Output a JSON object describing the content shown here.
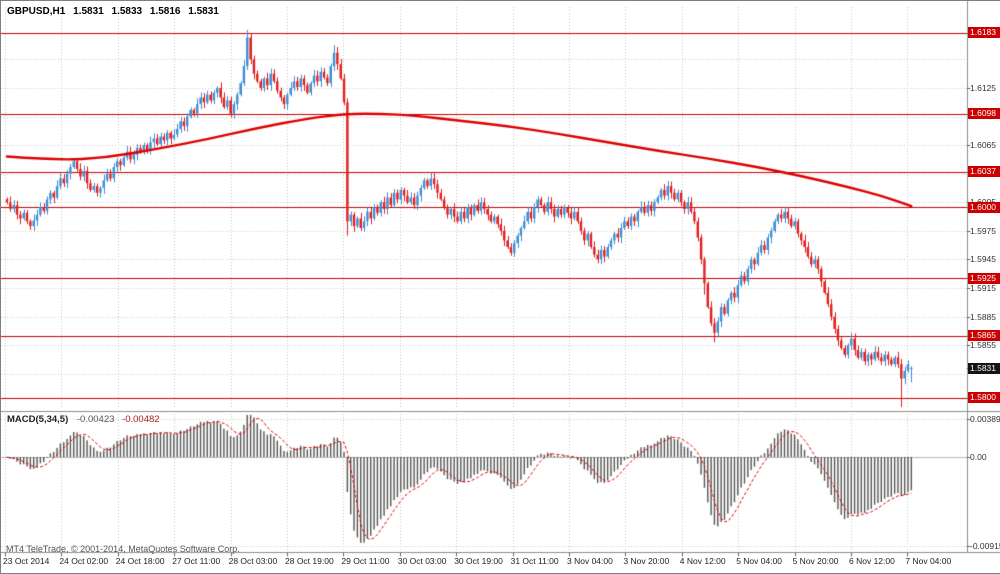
{
  "header": {
    "symbol": "GBPUSD,H1",
    "open": "1.5831",
    "high": "1.5833",
    "low": "1.5816",
    "close": "1.5831"
  },
  "macd_panel": {
    "name": "MACD(5,34,5)",
    "main_value": "-0.00423",
    "signal_value": "-0.00482"
  },
  "copyright": "MT4 TeleTrade, © 2001-2014, MetaQuotes Software Corp.",
  "price_axis": [
    {
      "label": "1.6183",
      "style": "red",
      "price": 1.6183
    },
    {
      "label": "1.6125",
      "style": "plain",
      "price": 1.6125
    },
    {
      "label": "1.6098",
      "style": "red",
      "price": 1.6098
    },
    {
      "label": "1.6065",
      "style": "plain",
      "price": 1.6065
    },
    {
      "label": "1.6037",
      "style": "red",
      "price": 1.6037
    },
    {
      "label": "1.6005",
      "style": "plain",
      "price": 1.6005
    },
    {
      "label": "1.6000",
      "style": "red",
      "price": 1.6
    },
    {
      "label": "1.5975",
      "style": "plain",
      "price": 1.5975
    },
    {
      "label": "1.5945",
      "style": "plain",
      "price": 1.5945
    },
    {
      "label": "1.5925",
      "style": "red",
      "price": 1.5925
    },
    {
      "label": "1.5915",
      "style": "plain",
      "price": 1.5915
    },
    {
      "label": "1.5885",
      "style": "plain",
      "price": 1.5885
    },
    {
      "label": "1.5865",
      "style": "red",
      "price": 1.5865
    },
    {
      "label": "1.5855",
      "style": "plain",
      "price": 1.5855
    },
    {
      "label": "1.5831",
      "style": "current",
      "price": 1.5831
    },
    {
      "label": "1.5800",
      "style": "red",
      "price": 1.58
    }
  ],
  "macd_axis": [
    {
      "label": "0.00389",
      "value": 0.00389
    },
    {
      "label": "0.00",
      "value": 0
    },
    {
      "label": "-0.00915",
      "value": -0.00915
    }
  ],
  "time_axis": [
    "23 Oct 2014",
    "24 Oct 02:00",
    "24 Oct 18:00",
    "27 Oct 11:00",
    "28 Oct 03:00",
    "28 Oct 19:00",
    "29 Oct 11:00",
    "30 Oct 03:00",
    "30 Oct 19:00",
    "31 Oct 11:00",
    "3 Nov 04:00",
    "3 Nov 20:00",
    "4 Nov 12:00",
    "5 Nov 04:00",
    "5 Nov 20:00",
    "6 Nov 12:00",
    "7 Nov 04:00"
  ],
  "colors": {
    "background": "#ffffff",
    "up_candle": "#3f8fd6",
    "down_candle": "#e02020",
    "level_line": "#cc0000",
    "ma_line": "#dd0000",
    "grid": "#c9c9c9",
    "histogram": "#555555",
    "signal_line": "#e00000",
    "zero_line": "#b8b8b8",
    "separator": "#8c8c8c",
    "axis_tick": "#666666"
  },
  "chart_data": {
    "type": "candlestick",
    "symbol": "GBPUSD",
    "timeframe": "H1",
    "title": "GBPUSD,H1",
    "current_ohlc": {
      "open": 1.5831,
      "high": 1.5833,
      "low": 1.5816,
      "close": 1.5831
    },
    "horizontal_levels": [
      1.6183,
      1.6098,
      1.6037,
      1.6,
      1.5925,
      1.5865,
      1.58
    ],
    "price_grid": [
      1.5825,
      1.5855,
      1.5885,
      1.5915,
      1.5945,
      1.5975,
      1.6005,
      1.6035,
      1.6065,
      1.6095,
      1.6125,
      1.6155
    ],
    "price_axis_range": {
      "top": 1.621,
      "bottom": 1.5788
    },
    "x_range": [
      "23 Oct 2014 00:00",
      "7 Nov 2014 06:00"
    ],
    "open_first": 1.6008,
    "closes": [
      1.6005,
      1.5998,
      1.6002,
      1.5992,
      1.5988,
      1.5994,
      1.5985,
      1.598,
      1.5986,
      1.5992,
      1.6,
      1.5996,
      1.6008,
      1.6015,
      1.601,
      1.6022,
      1.603,
      1.6025,
      1.6035,
      1.6042,
      1.6048,
      1.604,
      1.6032,
      1.6038,
      1.6025,
      1.6018,
      1.6022,
      1.6015,
      1.602,
      1.6028,
      1.6035,
      1.603,
      1.6042,
      1.6048,
      1.6044,
      1.6052,
      1.6058,
      1.605,
      1.6055,
      1.6062,
      1.6058,
      1.6065,
      1.606,
      1.6068,
      1.6072,
      1.6066,
      1.6074,
      1.607,
      1.6078,
      1.6072,
      1.6076,
      1.6082,
      1.609,
      1.6085,
      1.6095,
      1.6102,
      1.6098,
      1.6108,
      1.6115,
      1.611,
      1.6118,
      1.6112,
      1.612,
      1.6125,
      1.6115,
      1.6105,
      1.6112,
      1.6098,
      1.6108,
      1.6118,
      1.613,
      1.6148,
      1.6178,
      1.6155,
      1.614,
      1.6132,
      1.6125,
      1.6135,
      1.6128,
      1.614,
      1.6132,
      1.6122,
      1.6115,
      1.6108,
      1.6118,
      1.6125,
      1.6132,
      1.6126,
      1.6135,
      1.6128,
      1.612,
      1.613,
      1.6138,
      1.6132,
      1.6142,
      1.6136,
      1.613,
      1.6148,
      1.6162,
      1.615,
      1.6135,
      1.611,
      1.5985,
      1.5992,
      1.598,
      1.5988,
      1.5978,
      1.5985,
      1.5995,
      1.5988,
      1.6,
      1.5994,
      1.6005,
      1.5998,
      1.601,
      1.6002,
      1.6015,
      1.6008,
      1.6018,
      1.6012,
      1.6005,
      1.601,
      1.6002,
      1.6012,
      1.602,
      1.6028,
      1.6022,
      1.603,
      1.6024,
      1.6015,
      1.6008,
      1.6,
      1.5992,
      1.5998,
      1.599,
      1.5985,
      1.5995,
      1.5988,
      1.6,
      1.5992,
      1.6002,
      1.5996,
      1.6005,
      1.5998,
      1.5992,
      1.5985,
      1.599,
      1.5982,
      1.5975,
      1.5965,
      1.5958,
      1.5952,
      1.5962,
      1.597,
      1.5978,
      1.5985,
      1.5995,
      1.5988,
      1.6,
      1.6008,
      1.6002,
      1.5995,
      1.6005,
      1.5998,
      1.599,
      1.5998,
      1.5992,
      1.6,
      1.5994,
      1.5988,
      1.5995,
      1.5985,
      1.5975,
      1.5965,
      1.5972,
      1.5958,
      1.595,
      1.5945,
      1.5955,
      1.5948,
      1.5958,
      1.5965,
      1.5972,
      1.5968,
      1.5978,
      1.5985,
      1.598,
      1.599,
      1.5985,
      1.5995,
      1.6,
      1.5994,
      1.6002,
      1.5996,
      1.6005,
      1.601,
      1.6018,
      1.6012,
      1.6022,
      1.6015,
      1.6008,
      1.6015,
      1.6005,
      1.5998,
      1.6005,
      1.5995,
      1.5985,
      1.5968,
      1.5945,
      1.592,
      1.5895,
      1.5878,
      1.5868,
      1.588,
      1.5895,
      1.5888,
      1.5902,
      1.591,
      1.5905,
      1.5918,
      1.5928,
      1.5922,
      1.5935,
      1.5945,
      1.594,
      1.5952,
      1.596,
      1.5955,
      1.5968,
      1.5975,
      1.5985,
      1.5992,
      1.5988,
      1.5995,
      1.5988,
      1.598,
      1.5985,
      1.5972,
      1.5965,
      1.5958,
      1.5948,
      1.594,
      1.5945,
      1.5935,
      1.5922,
      1.591,
      1.5898,
      1.5885,
      1.5872,
      1.586,
      1.5852,
      1.5845,
      1.5855,
      1.5862,
      1.585,
      1.5842,
      1.5848,
      1.5838,
      1.5845,
      1.584,
      1.5848,
      1.5842,
      1.5838,
      1.5845,
      1.584,
      1.5835,
      1.5842,
      1.5835,
      1.582,
      1.5828,
      1.5835,
      1.5831
    ],
    "overrides": {
      "72": {
        "h": 1.6186
      },
      "98": {
        "h": 1.617
      },
      "102": {
        "l": 1.597
      },
      "209": {
        "l": 1.5908
      },
      "212": {
        "l": 1.5858
      },
      "268": {
        "l": 1.579
      },
      "271": {
        "o": 1.5831,
        "h": 1.5833,
        "l": 1.5816
      }
    },
    "ma_waypoints": [
      [
        0,
        1.6053
      ],
      [
        15,
        1.6049
      ],
      [
        30,
        1.6052
      ],
      [
        45,
        1.6061
      ],
      [
        60,
        1.6071
      ],
      [
        75,
        1.6083
      ],
      [
        90,
        1.6093
      ],
      [
        102,
        1.6098
      ],
      [
        112,
        1.6098
      ],
      [
        122,
        1.6096
      ],
      [
        135,
        1.6091
      ],
      [
        150,
        1.6085
      ],
      [
        165,
        1.6077
      ],
      [
        180,
        1.6068
      ],
      [
        195,
        1.6059
      ],
      [
        210,
        1.6051
      ],
      [
        225,
        1.6042
      ],
      [
        240,
        1.6031
      ],
      [
        252,
        1.6021
      ],
      [
        262,
        1.6012
      ],
      [
        271,
        1.6001
      ]
    ],
    "macd": {
      "fast": 5,
      "slow": 34,
      "signal": 5,
      "last_main": -0.00423,
      "last_signal": -0.00482,
      "axis_max": 0.00389,
      "axis_min": -0.00915
    }
  }
}
